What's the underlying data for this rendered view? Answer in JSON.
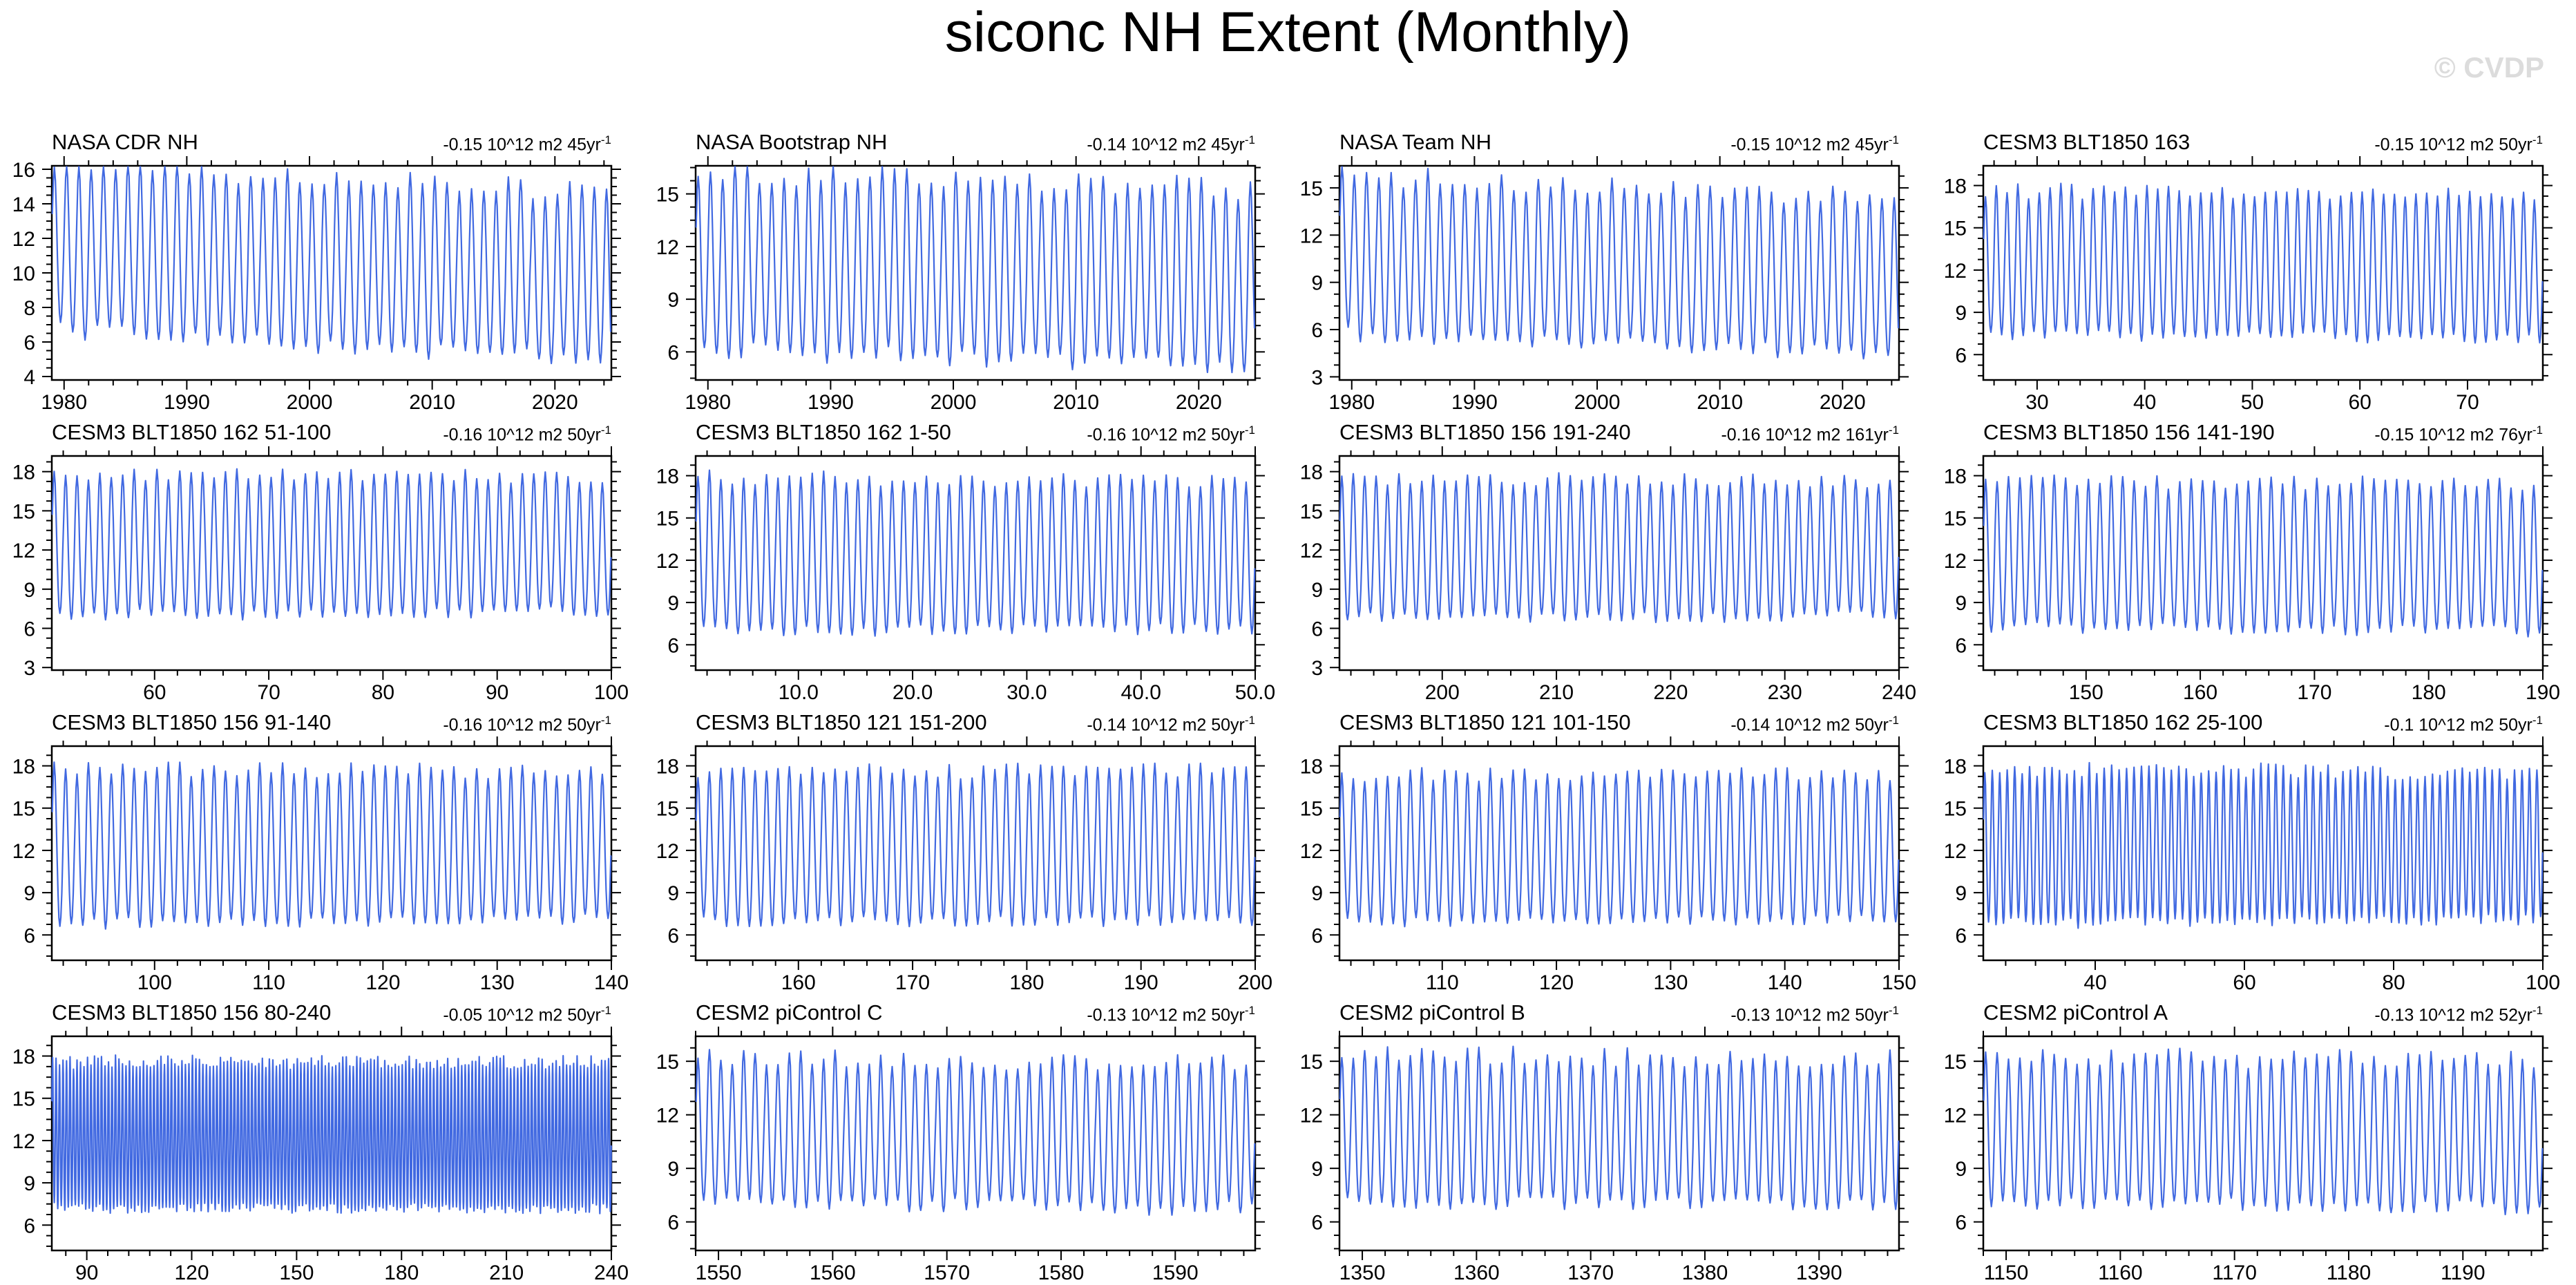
{
  "page": {
    "title": "siconc NH Extent (Monthly)",
    "watermark": "© CVDP"
  },
  "colors": {
    "line": "#4169E1",
    "frame": "#000000",
    "watermark": "#dcdcdc"
  },
  "chart_data": {
    "type": "line",
    "title": "siconc NH Extent (Monthly)",
    "units": "10^12 m2",
    "frequency": "monthly",
    "grid": "off",
    "legend": "none",
    "description": "4x4 grid of monthly Northern Hemisphere sea-ice extent time series; each panel shows a seasonal cycle oscillating between winter peaks and summer troughs; per-panel linear trend printed at top right.",
    "panels": [
      {
        "title": "NASA CDR NH",
        "trend": "-0.15 10^12 m2 45yr",
        "trend_sup": "-1",
        "xlim": [
          1979,
          2024.6
        ],
        "xtick_values": [
          1980,
          1990,
          2000,
          2010,
          2020
        ],
        "xtick_labels": [
          "1980",
          "1990",
          "2000",
          "2010",
          "2020"
        ],
        "ylim": [
          3.8,
          16.2
        ],
        "ytick_values": [
          4,
          6,
          8,
          10,
          12,
          14,
          16
        ],
        "envelope": {
          "peak_start": 15.8,
          "peak_end": 14.3,
          "trough_start": 6.4,
          "trough_end": 4.6
        },
        "noise": 1.3,
        "seed": 1
      },
      {
        "title": "NASA Bootstrap NH",
        "trend": "-0.14 10^12 m2 45yr",
        "trend_sup": "-1",
        "xlim": [
          1979,
          2024.6
        ],
        "xtick_values": [
          1980,
          1990,
          2000,
          2010,
          2020
        ],
        "xtick_labels": [
          "1980",
          "1990",
          "2000",
          "2010",
          "2020"
        ],
        "ylim": [
          4.4,
          16.6
        ],
        "ytick_values": [
          6,
          9,
          12,
          15
        ],
        "envelope": {
          "peak_start": 15.9,
          "peak_end": 14.9,
          "trough_start": 5.7,
          "trough_end": 4.9
        },
        "noise": 1.3,
        "seed": 2
      },
      {
        "title": "NASA Team NH",
        "trend": "-0.15 10^12 m2 45yr",
        "trend_sup": "-1",
        "xlim": [
          1979,
          2024.6
        ],
        "xtick_values": [
          1980,
          1990,
          2000,
          2010,
          2020
        ],
        "xtick_labels": [
          "1980",
          "1990",
          "2000",
          "2010",
          "2020"
        ],
        "ylim": [
          2.8,
          16.4
        ],
        "ytick_values": [
          3,
          6,
          9,
          12,
          15
        ],
        "envelope": {
          "peak_start": 15.5,
          "peak_end": 14.0,
          "trough_start": 5.4,
          "trough_end": 3.9
        },
        "noise": 1.3,
        "seed": 3
      },
      {
        "title": "CESM3 BLT1850 163",
        "trend": "-0.15 10^12 m2 50yr",
        "trend_sup": "-1",
        "xlim": [
          25,
          77
        ],
        "xtick_values": [
          30,
          40,
          50,
          60,
          70
        ],
        "xtick_labels": [
          "30",
          "40",
          "50",
          "60",
          "70"
        ],
        "ylim": [
          4.2,
          19.4
        ],
        "ytick_values": [
          6,
          9,
          12,
          15,
          18
        ],
        "envelope": {
          "peak_start": 17.3,
          "peak_end": 17.0,
          "trough_start": 7.0,
          "trough_end": 6.8
        },
        "noise": 1.0,
        "seed": 4
      },
      {
        "title": "CESM3 BLT1850 162 51-100",
        "trend": "-0.16 10^12 m2 50yr",
        "trend_sup": "-1",
        "xlim": [
          51,
          100
        ],
        "xtick_values": [
          60,
          70,
          80,
          90,
          100
        ],
        "xtick_labels": [
          "60",
          "70",
          "80",
          "90",
          "100"
        ],
        "ylim": [
          2.8,
          19.2
        ],
        "ytick_values": [
          3,
          6,
          9,
          12,
          15,
          18
        ],
        "envelope": {
          "peak_start": 17.4,
          "peak_end": 17.2,
          "trough_start": 6.6,
          "trough_end": 6.9
        },
        "noise": 1.0,
        "seed": 5
      },
      {
        "title": "CESM3 BLT1850 162 1-50",
        "trend": "-0.16 10^12 m2 50yr",
        "trend_sup": "-1",
        "xlim": [
          1,
          50
        ],
        "xtick_values": [
          10,
          20,
          30,
          40,
          50
        ],
        "xtick_labels": [
          "10.0",
          "20.0",
          "30.0",
          "40.0",
          "50.0"
        ],
        "ylim": [
          4.2,
          19.4
        ],
        "ytick_values": [
          6,
          9,
          12,
          15,
          18
        ],
        "envelope": {
          "peak_start": 17.5,
          "peak_end": 17.1,
          "trough_start": 6.6,
          "trough_end": 6.8
        },
        "noise": 1.0,
        "seed": 6
      },
      {
        "title": "CESM3 BLT1850 156 191-240",
        "trend": "-0.16 10^12 m2 161yr",
        "trend_sup": "-1",
        "xlim": [
          191,
          240
        ],
        "xtick_values": [
          200,
          210,
          220,
          230,
          240
        ],
        "xtick_labels": [
          "200",
          "210",
          "220",
          "230",
          "240"
        ],
        "ylim": [
          2.8,
          19.2
        ],
        "ytick_values": [
          3,
          6,
          9,
          12,
          15,
          18
        ],
        "envelope": {
          "peak_start": 17.1,
          "peak_end": 16.9,
          "trough_start": 6.4,
          "trough_end": 6.6
        },
        "noise": 1.0,
        "seed": 7
      },
      {
        "title": "CESM3 BLT1850 156 141-190",
        "trend": "-0.15 10^12 m2 76yr",
        "trend_sup": "-1",
        "xlim": [
          141,
          190
        ],
        "xtick_values": [
          150,
          160,
          170,
          180,
          190
        ],
        "xtick_labels": [
          "150",
          "160",
          "170",
          "180",
          "190"
        ],
        "ylim": [
          4.2,
          19.4
        ],
        "ytick_values": [
          6,
          9,
          12,
          15,
          18
        ],
        "envelope": {
          "peak_start": 17.3,
          "peak_end": 17.0,
          "trough_start": 6.8,
          "trough_end": 6.6
        },
        "noise": 1.0,
        "seed": 8
      },
      {
        "title": "CESM3 BLT1850 156 91-140",
        "trend": "-0.16 10^12 m2 50yr",
        "trend_sup": "-1",
        "xlim": [
          91,
          140
        ],
        "xtick_values": [
          100,
          110,
          120,
          130,
          140
        ],
        "xtick_labels": [
          "100",
          "110",
          "120",
          "130",
          "140"
        ],
        "ylim": [
          4.2,
          19.4
        ],
        "ytick_values": [
          6,
          9,
          12,
          15,
          18
        ],
        "envelope": {
          "peak_start": 17.5,
          "peak_end": 17.2,
          "trough_start": 6.4,
          "trough_end": 6.7
        },
        "noise": 1.0,
        "seed": 9
      },
      {
        "title": "CESM3 BLT1850 121 151-200",
        "trend": "-0.14 10^12 m2 50yr",
        "trend_sup": "-1",
        "xlim": [
          151,
          200
        ],
        "xtick_values": [
          160,
          170,
          180,
          190,
          200
        ],
        "xtick_labels": [
          "160",
          "170",
          "180",
          "190",
          "200"
        ],
        "ylim": [
          4.2,
          19.4
        ],
        "ytick_values": [
          6,
          9,
          12,
          15,
          18
        ],
        "envelope": {
          "peak_start": 17.2,
          "peak_end": 17.3,
          "trough_start": 6.6,
          "trough_end": 6.5
        },
        "noise": 1.0,
        "seed": 10
      },
      {
        "title": "CESM3 BLT1850 121 101-150",
        "trend": "-0.14 10^12 m2 50yr",
        "trend_sup": "-1",
        "xlim": [
          101,
          150
        ],
        "xtick_values": [
          110,
          120,
          130,
          140,
          150
        ],
        "xtick_labels": [
          "110",
          "120",
          "130",
          "140",
          "150"
        ],
        "ylim": [
          4.2,
          19.4
        ],
        "ytick_values": [
          6,
          9,
          12,
          15,
          18
        ],
        "envelope": {
          "peak_start": 17.0,
          "peak_end": 17.1,
          "trough_start": 6.6,
          "trough_end": 6.7
        },
        "noise": 1.0,
        "seed": 11
      },
      {
        "title": "CESM3 BLT1850 162 25-100",
        "trend": "-0.1 10^12 m2 50yr",
        "trend_sup": "-1",
        "xlim": [
          25,
          100
        ],
        "xtick_values": [
          40,
          60,
          80,
          100
        ],
        "xtick_labels": [
          "40",
          "60",
          "80",
          "100"
        ],
        "ylim": [
          4.2,
          19.4
        ],
        "ytick_values": [
          6,
          9,
          12,
          15,
          18
        ],
        "envelope": {
          "peak_start": 17.4,
          "peak_end": 17.1,
          "trough_start": 6.5,
          "trough_end": 6.7
        },
        "noise": 1.0,
        "seed": 12
      },
      {
        "title": "CESM3 BLT1850 156 80-240",
        "trend": "-0.05 10^12 m2 50yr",
        "trend_sup": "-1",
        "xlim": [
          80,
          240
        ],
        "xtick_values": [
          90,
          120,
          150,
          180,
          210,
          240
        ],
        "xtick_labels": [
          "90",
          "120",
          "150",
          "180",
          "210",
          "240"
        ],
        "ylim": [
          4.2,
          19.4
        ],
        "ytick_values": [
          6,
          9,
          12,
          15,
          18
        ],
        "envelope": {
          "peak_start": 17.2,
          "peak_end": 17.2,
          "trough_start": 6.9,
          "trough_end": 6.8
        },
        "noise": 0.9,
        "seed": 13
      },
      {
        "title": "CESM2 piControl C",
        "trend": "-0.13 10^12 m2 50yr",
        "trend_sup": "-1",
        "xlim": [
          1548,
          1597
        ],
        "xtick_values": [
          1550,
          1560,
          1570,
          1580,
          1590
        ],
        "xtick_labels": [
          "1550",
          "1560",
          "1570",
          "1580",
          "1590"
        ],
        "ylim": [
          4.4,
          16.4
        ],
        "ytick_values": [
          6,
          9,
          12,
          15
        ],
        "envelope": {
          "peak_start": 14.9,
          "peak_end": 14.6,
          "trough_start": 6.7,
          "trough_end": 6.5
        },
        "noise": 1.0,
        "seed": 14
      },
      {
        "title": "CESM2 piControl B",
        "trend": "-0.13 10^12 m2 50yr",
        "trend_sup": "-1",
        "xlim": [
          1348,
          1397
        ],
        "xtick_values": [
          1350,
          1360,
          1370,
          1380,
          1390
        ],
        "xtick_labels": [
          "1350",
          "1360",
          "1370",
          "1380",
          "1390"
        ],
        "ylim": [
          4.4,
          16.4
        ],
        "ytick_values": [
          6,
          9,
          12,
          15
        ],
        "envelope": {
          "peak_start": 15.1,
          "peak_end": 14.8,
          "trough_start": 6.8,
          "trough_end": 6.6
        },
        "noise": 1.0,
        "seed": 15
      },
      {
        "title": "CESM2 piControl A",
        "trend": "-0.13 10^12 m2 52yr",
        "trend_sup": "-1",
        "xlim": [
          1148,
          1197
        ],
        "xtick_values": [
          1150,
          1160,
          1170,
          1180,
          1190
        ],
        "xtick_labels": [
          "1150",
          "1160",
          "1170",
          "1180",
          "1190"
        ],
        "ylim": [
          4.4,
          16.4
        ],
        "ytick_values": [
          6,
          9,
          12,
          15
        ],
        "envelope": {
          "peak_start": 15.0,
          "peak_end": 14.7,
          "trough_start": 6.7,
          "trough_end": 6.5
        },
        "noise": 1.0,
        "seed": 16
      }
    ]
  }
}
